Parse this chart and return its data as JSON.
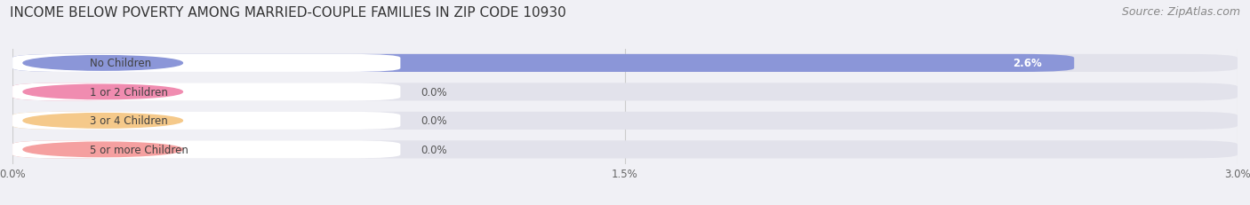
{
  "title": "INCOME BELOW POVERTY AMONG MARRIED-COUPLE FAMILIES IN ZIP CODE 10930",
  "source": "Source: ZipAtlas.com",
  "categories": [
    "No Children",
    "1 or 2 Children",
    "3 or 4 Children",
    "5 or more Children"
  ],
  "values": [
    2.6,
    0.0,
    0.0,
    0.0
  ],
  "bar_colors": [
    "#8b96d8",
    "#f08cb0",
    "#f5c98a",
    "#f5a0a0"
  ],
  "xlim": [
    0,
    3.0
  ],
  "xticks": [
    0.0,
    1.5,
    3.0
  ],
  "xtick_labels": [
    "0.0%",
    "1.5%",
    "3.0%"
  ],
  "bg_color": "#f0f0f5",
  "bar_bg_color": "#e2e2eb",
  "title_fontsize": 11,
  "source_fontsize": 9,
  "label_fontsize": 8.5,
  "value_fontsize": 8.5,
  "figsize": [
    14.06,
    2.32
  ],
  "dpi": 100
}
